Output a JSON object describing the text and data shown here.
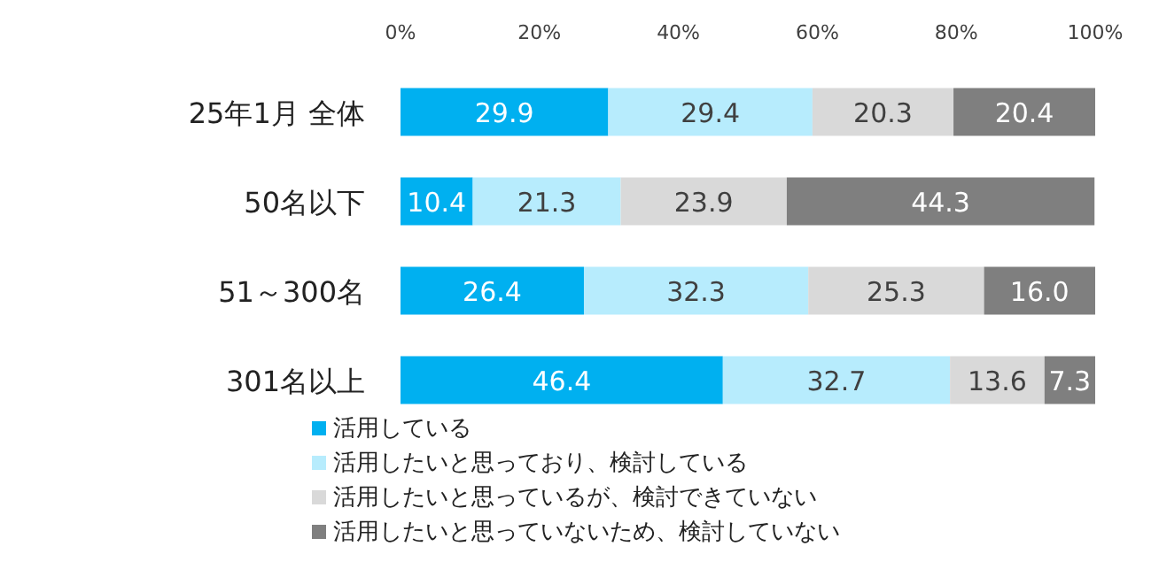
{
  "chart_data": {
    "type": "bar",
    "orientation": "horizontal",
    "stacked": true,
    "categories": [
      "25年1月 全体",
      "50名以下",
      "51～300名",
      "301名以上"
    ],
    "series": [
      {
        "name": "活用している",
        "color": "#00b0f0",
        "values": [
          29.9,
          10.4,
          26.4,
          46.4
        ],
        "value_labels": [
          "29.9",
          "10.4",
          "26.4",
          "46.4"
        ]
      },
      {
        "name": "活用したいと思っており、検討している",
        "color": "#b7ecfd",
        "values": [
          29.4,
          21.3,
          32.3,
          32.7
        ],
        "value_labels": [
          "29.4",
          "21.3",
          "32.3",
          "32.7"
        ]
      },
      {
        "name": "活用したいと思っているが、検討できていない",
        "color": "#d9d9d9",
        "values": [
          20.3,
          23.9,
          25.3,
          13.6
        ],
        "value_labels": [
          "20.3",
          "23.9",
          "25.3",
          "13.6"
        ]
      },
      {
        "name": "活用したいと思っていないため、検討していない",
        "color": "#7f7f7f",
        "values": [
          20.4,
          44.3,
          16.0,
          7.3
        ],
        "value_labels": [
          "20.4",
          "44.3",
          "16.0",
          "7.3"
        ]
      }
    ],
    "xlim": [
      0,
      100
    ],
    "xticks": [
      {
        "value": 0,
        "label": "0%"
      },
      {
        "value": 20,
        "label": "20%"
      },
      {
        "value": 40,
        "label": "40%"
      },
      {
        "value": 60,
        "label": "60%"
      },
      {
        "value": 80,
        "label": "80%"
      },
      {
        "value": 100,
        "label": "100%"
      }
    ],
    "legend": "bottom left"
  }
}
